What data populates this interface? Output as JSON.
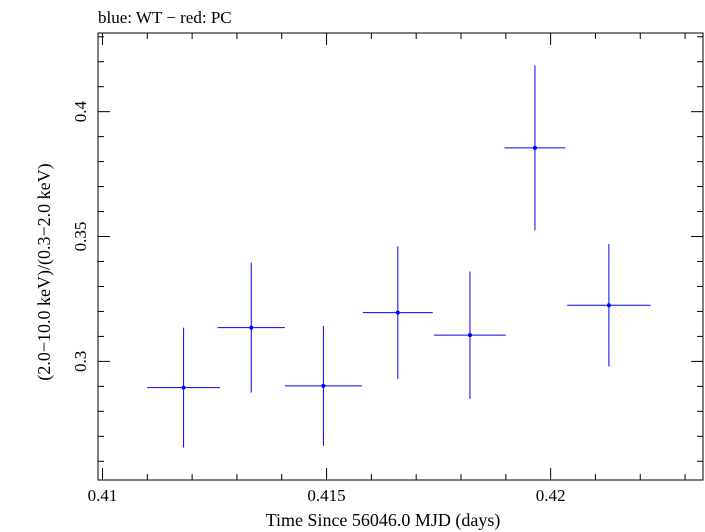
{
  "chart_data": {
    "type": "scatter",
    "title": "blue: WT − red: PC",
    "xlabel": "Time Since 56046.0 MJD (days)",
    "ylabel": "(2.0−10.0 keV)/(0.3−2.0 keV)",
    "xlim": [
      0.4099,
      0.4234
    ],
    "ylim": [
      0.2525,
      0.4315
    ],
    "x_ticks": [
      {
        "value": 0.41,
        "label": "0.41"
      },
      {
        "value": 0.415,
        "label": "0.415"
      },
      {
        "value": 0.42,
        "label": "0.42"
      }
    ],
    "y_ticks": [
      {
        "value": 0.3,
        "label": "0.3"
      },
      {
        "value": 0.35,
        "label": "0.35"
      },
      {
        "value": 0.4,
        "label": "0.4"
      }
    ],
    "series": [
      {
        "color": "#0000ff",
        "points": [
          {
            "x": 0.41181,
            "y": 0.2895,
            "xerr": 0.00081,
            "yerr": 0.024
          },
          {
            "x": 0.41332,
            "y": 0.3135,
            "xerr": 0.00075,
            "yerr": 0.026
          },
          {
            "x": 0.41493,
            "y": 0.2902,
            "xerr": 0.00086,
            "yerr": 0.024
          },
          {
            "x": 0.41659,
            "y": 0.3195,
            "xerr": 0.00078,
            "yerr": 0.0265
          },
          {
            "x": 0.4182,
            "y": 0.3105,
            "xerr": 0.0008,
            "yerr": 0.0255
          },
          {
            "x": 0.41965,
            "y": 0.3855,
            "xerr": 0.00068,
            "yerr": 0.033
          },
          {
            "x": 0.4213,
            "y": 0.3225,
            "xerr": 0.00093,
            "yerr": 0.0245
          }
        ]
      }
    ]
  }
}
